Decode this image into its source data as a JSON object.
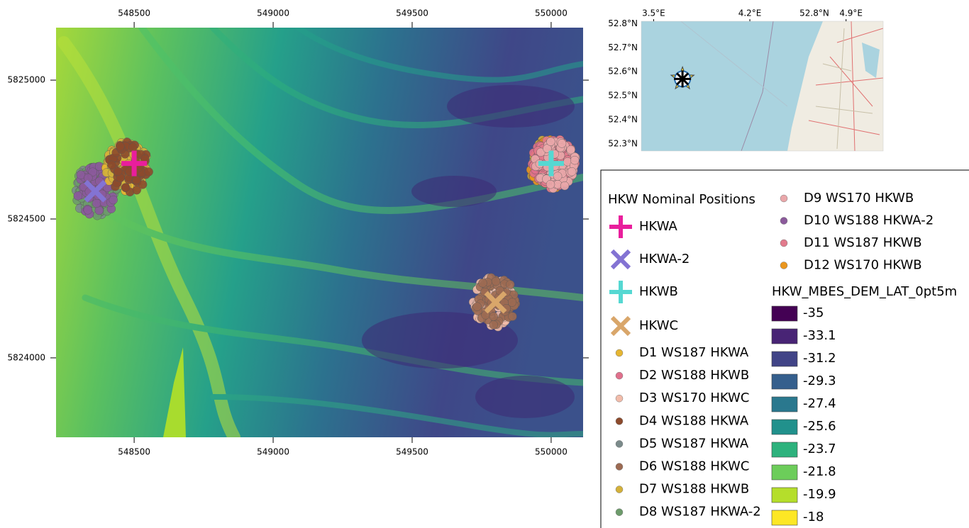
{
  "map": {
    "xlim": [
      548219,
      550115
    ],
    "ylim": [
      5823714,
      5825189
    ],
    "xticks": [
      548500,
      549000,
      549500,
      550000
    ],
    "yticks": [
      5824000,
      5824500,
      5825000
    ],
    "nominal_positions": [
      {
        "name": "HKWA",
        "x": 548500,
        "y": 5824700,
        "color": "#e91e9c",
        "marker": "plus"
      },
      {
        "name": "HKWA-2",
        "x": 548360,
        "y": 5824600,
        "color": "#8373d3",
        "marker": "cross"
      },
      {
        "name": "HKWB",
        "x": 550000,
        "y": 5824700,
        "color": "#55d8d2",
        "marker": "plus"
      },
      {
        "name": "HKWC",
        "x": 549800,
        "y": 5824200,
        "color": "#d9a66a",
        "marker": "cross"
      }
    ]
  },
  "inset": {
    "xlim": [
      3.41,
      5.17
    ],
    "ylim": [
      52.27,
      52.81
    ],
    "xticks": [
      {
        "value": 3.5,
        "label": "3.5°E"
      },
      {
        "value": 4.2,
        "label": "4.2°E"
      },
      {
        "value": 4.9,
        "label": "4.9°E"
      }
    ],
    "extra_top_label": "52.8°N",
    "yticks": [
      {
        "value": 52.8,
        "label": "52.8°N"
      },
      {
        "value": 52.7,
        "label": "52.7°N"
      },
      {
        "value": 52.6,
        "label": "52.6°N"
      },
      {
        "value": 52.5,
        "label": "52.5°N"
      },
      {
        "value": 52.4,
        "label": "52.4°N"
      },
      {
        "value": 52.3,
        "label": "52.3°N"
      }
    ],
    "site": {
      "lon": 3.71,
      "lat": 52.57
    }
  },
  "legend": {
    "title": "HKW Nominal Positions",
    "datasets": [
      {
        "name": "D1 WS187 HKWA",
        "color": "#e6b632"
      },
      {
        "name": "D2 WS188 HKWB",
        "color": "#e0708c"
      },
      {
        "name": "D3 WS170 HKWC",
        "color": "#f2bcaa"
      },
      {
        "name": "D4 WS188 HKWA",
        "color": "#8c4a2c"
      },
      {
        "name": "D5 WS187 HKWA",
        "color": "#7b8b8b"
      },
      {
        "name": "D6 WS188 HKWC",
        "color": "#9c6a52"
      },
      {
        "name": "D7 WS188 HKWB",
        "color": "#d4b13a"
      },
      {
        "name": "D8 WS187 HKWA-2",
        "color": "#6d9b6b"
      },
      {
        "name": "D9 WS170 HKWB",
        "color": "#eaa7aa"
      },
      {
        "name": "D10 WS188 HKWA-2",
        "color": "#8b5a9b"
      },
      {
        "name": "D11 WS187 HKWB",
        "color": "#e27a8c"
      },
      {
        "name": "D12 WS170 HKWB",
        "color": "#ea961e"
      }
    ],
    "ramp_title": "HKW_MBES_DEM_LAT_0pt5m",
    "ramp": [
      {
        "value": -35,
        "color": "#440154"
      },
      {
        "value": -33.1,
        "color": "#482475"
      },
      {
        "value": -31.2,
        "color": "#414487"
      },
      {
        "value": -29.3,
        "color": "#355f8d"
      },
      {
        "value": -27.4,
        "color": "#2a788e"
      },
      {
        "value": -25.6,
        "color": "#21918c"
      },
      {
        "value": -23.7,
        "color": "#2db27d"
      },
      {
        "value": -21.8,
        "color": "#6ccd5a"
      },
      {
        "value": -19.9,
        "color": "#b5de2b"
      },
      {
        "value": -18,
        "color": "#fde725"
      }
    ]
  }
}
